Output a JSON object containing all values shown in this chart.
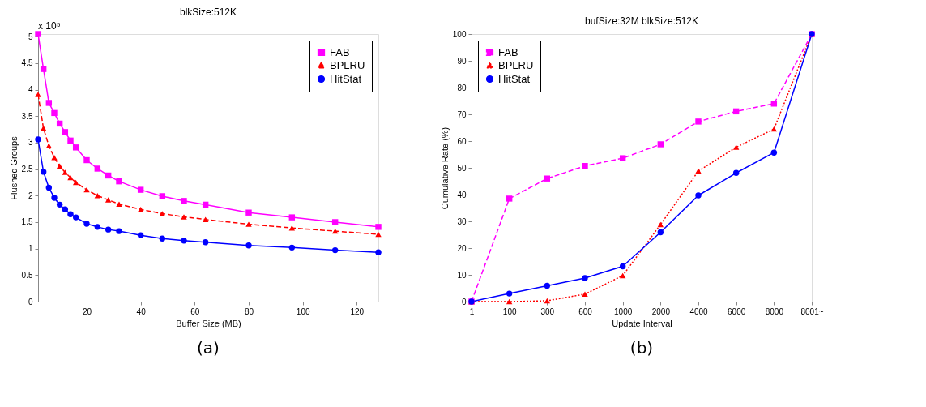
{
  "chart_data": [
    {
      "type": "line",
      "title": "blkSize:512K",
      "xlabel": "Buffer Size (MB)",
      "ylabel": "Flushed Groups",
      "x": [
        2,
        4,
        6,
        8,
        10,
        12,
        14,
        16,
        20,
        24,
        28,
        32,
        40,
        48,
        56,
        64,
        80,
        96,
        112,
        128
      ],
      "series": [
        {
          "name": "FAB",
          "color": "#ff00ff",
          "marker": "square",
          "line_style": "solid",
          "values": [
            5.05,
            4.39,
            3.75,
            3.56,
            3.36,
            3.2,
            3.04,
            2.91,
            2.67,
            2.51,
            2.38,
            2.27,
            2.11,
            1.99,
            1.9,
            1.83,
            1.68,
            1.59,
            1.5,
            1.41
          ]
        },
        {
          "name": "BPLRU",
          "color": "#ff0000",
          "marker": "triangle",
          "line_style": "dashed",
          "values": [
            3.91,
            3.27,
            2.94,
            2.72,
            2.56,
            2.44,
            2.34,
            2.25,
            2.11,
            2.0,
            1.92,
            1.84,
            1.74,
            1.66,
            1.6,
            1.55,
            1.46,
            1.39,
            1.33,
            1.27
          ]
        },
        {
          "name": "HitStat",
          "color": "#0000ff",
          "marker": "circle",
          "line_style": "solid",
          "values": [
            3.06,
            2.45,
            2.15,
            1.96,
            1.83,
            1.74,
            1.65,
            1.59,
            1.47,
            1.41,
            1.36,
            1.33,
            1.25,
            1.19,
            1.15,
            1.12,
            1.06,
            1.02,
            0.97,
            0.93
          ]
        }
      ],
      "xlim": [
        2,
        128
      ],
      "xticks": [
        20,
        40,
        60,
        80,
        100,
        120
      ],
      "ylim": [
        0,
        5.05
      ],
      "yticks": [
        0,
        0.5,
        1,
        1.5,
        2,
        2.5,
        3,
        3.5,
        4,
        4.5,
        5
      ],
      "grid": false,
      "legend": "top right",
      "annotations": [
        "x 10⁵",
        "(a)"
      ]
    },
    {
      "type": "line",
      "title": "bufSize:32M blkSize:512K",
      "xlabel": "Update Interval",
      "ylabel": "Cumulative Rate (%)",
      "categories": [
        "1",
        "100",
        "300",
        "600",
        "1000",
        "2000",
        "4000",
        "6000",
        "8000",
        "8001~"
      ],
      "series": [
        {
          "name": "FAB",
          "color": "#ff00ff",
          "marker": "square",
          "line_style": "dashed",
          "values": [
            0,
            38.5,
            46,
            50.7,
            53.6,
            58.8,
            67.3,
            71.1,
            74,
            100
          ]
        },
        {
          "name": "BPLRU",
          "color": "#ff0000",
          "marker": "triangle",
          "line_style": "dotted",
          "values": [
            0,
            0,
            0.3,
            2.8,
            9.7,
            28.8,
            48.8,
            57.7,
            64.5,
            100
          ]
        },
        {
          "name": "HitStat",
          "color": "#0000ff",
          "marker": "circle",
          "line_style": "solid",
          "values": [
            0,
            3,
            5.9,
            8.8,
            13.2,
            25.9,
            39.7,
            48.1,
            55.7,
            100
          ]
        }
      ],
      "ylim": [
        0,
        100
      ],
      "yticks": [
        0,
        10,
        20,
        30,
        40,
        50,
        60,
        70,
        80,
        90,
        100
      ],
      "grid": false,
      "legend": "top left",
      "annotations": [
        "(b)"
      ]
    }
  ]
}
